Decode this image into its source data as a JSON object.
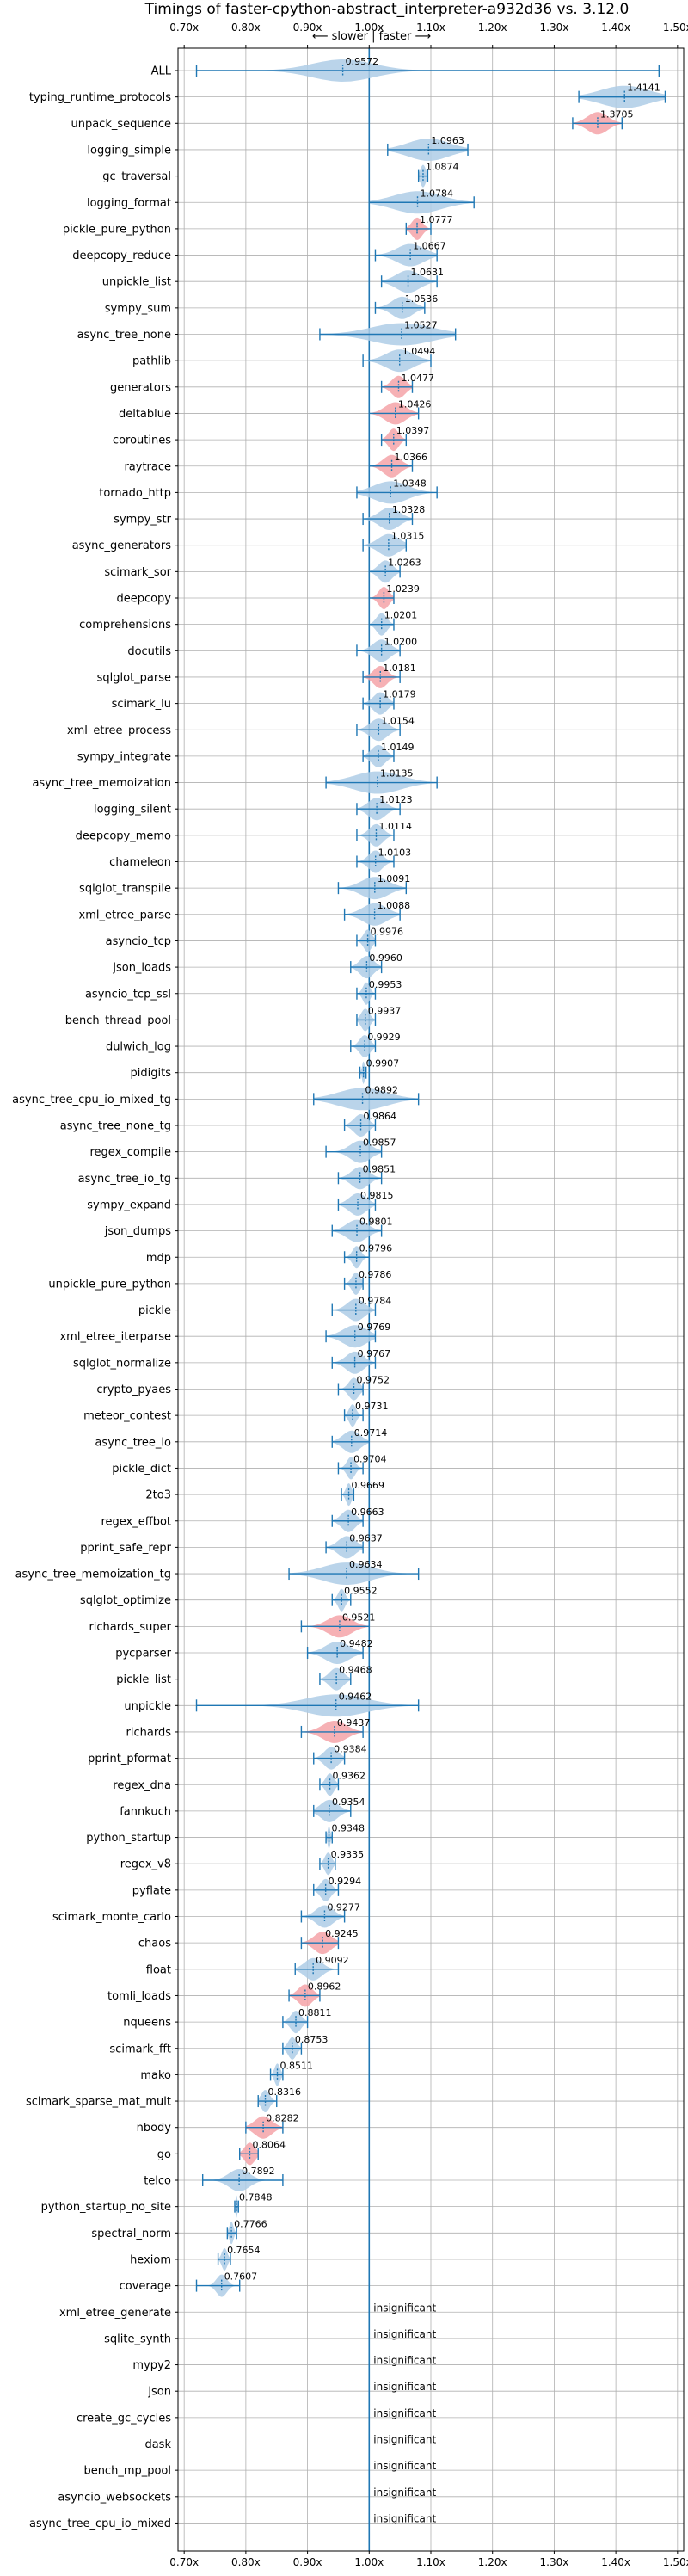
{
  "chart_data": {
    "type": "violin",
    "title": "Timings of faster-cpython-abstract_interpreter-a932d36 vs. 3.12.0",
    "direction_label": "⟵ slower | faster ⟶",
    "xlim": [
      0.69,
      1.51
    ],
    "x_ticks": [
      0.7,
      0.8,
      0.9,
      1.0,
      1.1,
      1.2,
      1.3,
      1.4,
      1.5
    ],
    "x_tick_labels": [
      "0.70x",
      "0.80x",
      "0.90x",
      "1.00x",
      "1.10x",
      "1.20x",
      "1.30x",
      "1.40x",
      "1.50x"
    ],
    "reference_line": 1.0,
    "grid": true,
    "highlight_color": "#f4a3a8",
    "violin_color": "#aecde6",
    "line_color": "#1f77b4",
    "insignificant_label": "insignificant",
    "benchmarks": [
      {
        "name": "ALL",
        "mean": 0.9572,
        "lo": 0.72,
        "hi": 1.47,
        "spread": 0.09,
        "highlight": false
      },
      {
        "name": "typing_runtime_protocols",
        "mean": 1.4141,
        "lo": 1.34,
        "hi": 1.48,
        "spread": 0.07,
        "highlight": false
      },
      {
        "name": "unpack_sequence",
        "mean": 1.3705,
        "lo": 1.33,
        "hi": 1.41,
        "spread": 0.03,
        "highlight": true
      },
      {
        "name": "logging_simple",
        "mean": 1.0963,
        "lo": 1.03,
        "hi": 1.16,
        "spread": 0.06,
        "highlight": false
      },
      {
        "name": "gc_traversal",
        "mean": 1.0874,
        "lo": 1.08,
        "hi": 1.095,
        "spread": 0.008,
        "highlight": false
      },
      {
        "name": "logging_format",
        "mean": 1.0784,
        "lo": 1.0,
        "hi": 1.17,
        "spread": 0.07,
        "highlight": false
      },
      {
        "name": "pickle_pure_python",
        "mean": 1.0777,
        "lo": 1.06,
        "hi": 1.1,
        "spread": 0.015,
        "highlight": true
      },
      {
        "name": "deepcopy_reduce",
        "mean": 1.0667,
        "lo": 1.01,
        "hi": 1.11,
        "spread": 0.04,
        "highlight": false
      },
      {
        "name": "unpickle_list",
        "mean": 1.0631,
        "lo": 1.02,
        "hi": 1.11,
        "spread": 0.035,
        "highlight": false
      },
      {
        "name": "sympy_sum",
        "mean": 1.0536,
        "lo": 1.01,
        "hi": 1.09,
        "spread": 0.03,
        "highlight": false
      },
      {
        "name": "async_tree_none",
        "mean": 1.0527,
        "lo": 0.92,
        "hi": 1.14,
        "spread": 0.09,
        "highlight": false
      },
      {
        "name": "pathlib",
        "mean": 1.0494,
        "lo": 0.99,
        "hi": 1.1,
        "spread": 0.04,
        "highlight": false
      },
      {
        "name": "generators",
        "mean": 1.0477,
        "lo": 1.02,
        "hi": 1.07,
        "spread": 0.02,
        "highlight": true
      },
      {
        "name": "deltablue",
        "mean": 1.0426,
        "lo": 1.0,
        "hi": 1.08,
        "spread": 0.03,
        "highlight": true
      },
      {
        "name": "coroutines",
        "mean": 1.0397,
        "lo": 1.02,
        "hi": 1.06,
        "spread": 0.015,
        "highlight": true
      },
      {
        "name": "raytrace",
        "mean": 1.0366,
        "lo": 1.0,
        "hi": 1.07,
        "spread": 0.025,
        "highlight": true
      },
      {
        "name": "tornado_http",
        "mean": 1.0348,
        "lo": 0.98,
        "hi": 1.11,
        "spread": 0.05,
        "highlight": false
      },
      {
        "name": "sympy_str",
        "mean": 1.0328,
        "lo": 0.99,
        "hi": 1.07,
        "spread": 0.03,
        "highlight": false
      },
      {
        "name": "async_generators",
        "mean": 1.0315,
        "lo": 0.99,
        "hi": 1.06,
        "spread": 0.03,
        "highlight": false
      },
      {
        "name": "scimark_sor",
        "mean": 1.0263,
        "lo": 1.0,
        "hi": 1.05,
        "spread": 0.02,
        "highlight": false
      },
      {
        "name": "deepcopy",
        "mean": 1.0239,
        "lo": 1.0,
        "hi": 1.04,
        "spread": 0.015,
        "highlight": true
      },
      {
        "name": "comprehensions",
        "mean": 1.0201,
        "lo": 1.0,
        "hi": 1.04,
        "spread": 0.015,
        "highlight": false
      },
      {
        "name": "docutils",
        "mean": 1.02,
        "lo": 0.98,
        "hi": 1.05,
        "spread": 0.025,
        "highlight": false
      },
      {
        "name": "sqlglot_parse",
        "mean": 1.0181,
        "lo": 0.99,
        "hi": 1.05,
        "spread": 0.02,
        "highlight": true
      },
      {
        "name": "scimark_lu",
        "mean": 1.0179,
        "lo": 0.99,
        "hi": 1.04,
        "spread": 0.02,
        "highlight": false
      },
      {
        "name": "xml_etree_process",
        "mean": 1.0154,
        "lo": 0.98,
        "hi": 1.05,
        "spread": 0.025,
        "highlight": false
      },
      {
        "name": "sympy_integrate",
        "mean": 1.0149,
        "lo": 0.99,
        "hi": 1.04,
        "spread": 0.02,
        "highlight": false
      },
      {
        "name": "async_tree_memoization",
        "mean": 1.0135,
        "lo": 0.93,
        "hi": 1.11,
        "spread": 0.07,
        "highlight": false
      },
      {
        "name": "logging_silent",
        "mean": 1.0123,
        "lo": 0.98,
        "hi": 1.05,
        "spread": 0.025,
        "highlight": false
      },
      {
        "name": "deepcopy_memo",
        "mean": 1.0114,
        "lo": 0.98,
        "hi": 1.04,
        "spread": 0.02,
        "highlight": false
      },
      {
        "name": "chameleon",
        "mean": 1.0103,
        "lo": 0.98,
        "hi": 1.04,
        "spread": 0.02,
        "highlight": false
      },
      {
        "name": "sqlglot_transpile",
        "mean": 1.0091,
        "lo": 0.95,
        "hi": 1.06,
        "spread": 0.04,
        "highlight": false
      },
      {
        "name": "xml_etree_parse",
        "mean": 1.0088,
        "lo": 0.96,
        "hi": 1.05,
        "spread": 0.035,
        "highlight": false
      },
      {
        "name": "asyncio_tcp",
        "mean": 0.9976,
        "lo": 0.98,
        "hi": 1.01,
        "spread": 0.012,
        "highlight": false
      },
      {
        "name": "json_loads",
        "mean": 0.996,
        "lo": 0.97,
        "hi": 1.02,
        "spread": 0.02,
        "highlight": false
      },
      {
        "name": "asyncio_tcp_ssl",
        "mean": 0.9953,
        "lo": 0.98,
        "hi": 1.01,
        "spread": 0.01,
        "highlight": false
      },
      {
        "name": "bench_thread_pool",
        "mean": 0.9937,
        "lo": 0.98,
        "hi": 1.01,
        "spread": 0.012,
        "highlight": false
      },
      {
        "name": "dulwich_log",
        "mean": 0.9929,
        "lo": 0.97,
        "hi": 1.01,
        "spread": 0.015,
        "highlight": false
      },
      {
        "name": "pidigits",
        "mean": 0.9907,
        "lo": 0.985,
        "hi": 0.995,
        "spread": 0.004,
        "highlight": false
      },
      {
        "name": "async_tree_cpu_io_mixed_tg",
        "mean": 0.9892,
        "lo": 0.91,
        "hi": 1.08,
        "spread": 0.07,
        "highlight": false
      },
      {
        "name": "async_tree_none_tg",
        "mean": 0.9864,
        "lo": 0.96,
        "hi": 1.01,
        "spread": 0.02,
        "highlight": false
      },
      {
        "name": "regex_compile",
        "mean": 0.9857,
        "lo": 0.93,
        "hi": 1.02,
        "spread": 0.03,
        "highlight": false
      },
      {
        "name": "async_tree_io_tg",
        "mean": 0.9851,
        "lo": 0.95,
        "hi": 1.02,
        "spread": 0.025,
        "highlight": false
      },
      {
        "name": "sympy_expand",
        "mean": 0.9815,
        "lo": 0.95,
        "hi": 1.01,
        "spread": 0.025,
        "highlight": false
      },
      {
        "name": "json_dumps",
        "mean": 0.9801,
        "lo": 0.94,
        "hi": 1.02,
        "spread": 0.03,
        "highlight": false
      },
      {
        "name": "mdp",
        "mean": 0.9796,
        "lo": 0.96,
        "hi": 1.0,
        "spread": 0.012,
        "highlight": false
      },
      {
        "name": "unpickle_pure_python",
        "mean": 0.9786,
        "lo": 0.96,
        "hi": 0.99,
        "spread": 0.012,
        "highlight": false
      },
      {
        "name": "pickle",
        "mean": 0.9784,
        "lo": 0.94,
        "hi": 1.01,
        "spread": 0.025,
        "highlight": false
      },
      {
        "name": "xml_etree_iterparse",
        "mean": 0.9769,
        "lo": 0.93,
        "hi": 1.01,
        "spread": 0.035,
        "highlight": false
      },
      {
        "name": "sqlglot_normalize",
        "mean": 0.9767,
        "lo": 0.94,
        "hi": 1.01,
        "spread": 0.025,
        "highlight": false
      },
      {
        "name": "crypto_pyaes",
        "mean": 0.9752,
        "lo": 0.95,
        "hi": 0.99,
        "spread": 0.015,
        "highlight": false
      },
      {
        "name": "meteor_contest",
        "mean": 0.9731,
        "lo": 0.96,
        "hi": 0.99,
        "spread": 0.01,
        "highlight": false
      },
      {
        "name": "async_tree_io",
        "mean": 0.9714,
        "lo": 0.94,
        "hi": 1.0,
        "spread": 0.025,
        "highlight": false
      },
      {
        "name": "pickle_dict",
        "mean": 0.9704,
        "lo": 0.95,
        "hi": 0.99,
        "spread": 0.012,
        "highlight": false
      },
      {
        "name": "2to3",
        "mean": 0.9669,
        "lo": 0.955,
        "hi": 0.975,
        "spread": 0.008,
        "highlight": false
      },
      {
        "name": "regex_effbot",
        "mean": 0.9663,
        "lo": 0.94,
        "hi": 0.99,
        "spread": 0.02,
        "highlight": false
      },
      {
        "name": "pprint_safe_repr",
        "mean": 0.9637,
        "lo": 0.93,
        "hi": 0.99,
        "spread": 0.025,
        "highlight": false
      },
      {
        "name": "async_tree_memoization_tg",
        "mean": 0.9634,
        "lo": 0.87,
        "hi": 1.08,
        "spread": 0.07,
        "highlight": false
      },
      {
        "name": "sqlglot_optimize",
        "mean": 0.9552,
        "lo": 0.94,
        "hi": 0.97,
        "spread": 0.01,
        "highlight": false
      },
      {
        "name": "richards_super",
        "mean": 0.9521,
        "lo": 0.89,
        "hi": 1.0,
        "spread": 0.035,
        "highlight": true
      },
      {
        "name": "pycparser",
        "mean": 0.9482,
        "lo": 0.9,
        "hi": 0.99,
        "spread": 0.035,
        "highlight": false
      },
      {
        "name": "pickle_list",
        "mean": 0.9468,
        "lo": 0.92,
        "hi": 0.97,
        "spread": 0.02,
        "highlight": false
      },
      {
        "name": "unpickle",
        "mean": 0.9462,
        "lo": 0.72,
        "hi": 1.08,
        "spread": 0.09,
        "highlight": false
      },
      {
        "name": "richards",
        "mean": 0.9437,
        "lo": 0.89,
        "hi": 0.99,
        "spread": 0.035,
        "highlight": true
      },
      {
        "name": "pprint_pformat",
        "mean": 0.9384,
        "lo": 0.91,
        "hi": 0.96,
        "spread": 0.02,
        "highlight": false
      },
      {
        "name": "regex_dna",
        "mean": 0.9362,
        "lo": 0.92,
        "hi": 0.95,
        "spread": 0.012,
        "highlight": false
      },
      {
        "name": "fannkuch",
        "mean": 0.9354,
        "lo": 0.91,
        "hi": 0.97,
        "spread": 0.025,
        "highlight": false
      },
      {
        "name": "python_startup",
        "mean": 0.9348,
        "lo": 0.93,
        "hi": 0.94,
        "spread": 0.004,
        "highlight": false
      },
      {
        "name": "regex_v8",
        "mean": 0.9335,
        "lo": 0.92,
        "hi": 0.945,
        "spread": 0.01,
        "highlight": false
      },
      {
        "name": "pyflate",
        "mean": 0.9294,
        "lo": 0.91,
        "hi": 0.95,
        "spread": 0.015,
        "highlight": false
      },
      {
        "name": "scimark_monte_carlo",
        "mean": 0.9277,
        "lo": 0.89,
        "hi": 0.96,
        "spread": 0.025,
        "highlight": false
      },
      {
        "name": "chaos",
        "mean": 0.9245,
        "lo": 0.89,
        "hi": 0.95,
        "spread": 0.025,
        "highlight": true
      },
      {
        "name": "float",
        "mean": 0.9092,
        "lo": 0.88,
        "hi": 0.95,
        "spread": 0.025,
        "highlight": false
      },
      {
        "name": "tomli_loads",
        "mean": 0.8962,
        "lo": 0.87,
        "hi": 0.92,
        "spread": 0.02,
        "highlight": true
      },
      {
        "name": "nqueens",
        "mean": 0.8811,
        "lo": 0.86,
        "hi": 0.9,
        "spread": 0.015,
        "highlight": false
      },
      {
        "name": "scimark_fft",
        "mean": 0.8753,
        "lo": 0.86,
        "hi": 0.89,
        "spread": 0.012,
        "highlight": false
      },
      {
        "name": "mako",
        "mean": 0.8511,
        "lo": 0.84,
        "hi": 0.86,
        "spread": 0.008,
        "highlight": false
      },
      {
        "name": "scimark_sparse_mat_mult",
        "mean": 0.8316,
        "lo": 0.82,
        "hi": 0.85,
        "spread": 0.012,
        "highlight": false
      },
      {
        "name": "nbody",
        "mean": 0.8282,
        "lo": 0.8,
        "hi": 0.86,
        "spread": 0.025,
        "highlight": true
      },
      {
        "name": "go",
        "mean": 0.8064,
        "lo": 0.79,
        "hi": 0.82,
        "spread": 0.015,
        "highlight": true
      },
      {
        "name": "telco",
        "mean": 0.7892,
        "lo": 0.73,
        "hi": 0.86,
        "spread": 0.03,
        "highlight": false
      },
      {
        "name": "python_startup_no_site",
        "mean": 0.7848,
        "lo": 0.782,
        "hi": 0.788,
        "spread": 0.003,
        "highlight": false
      },
      {
        "name": "spectral_norm",
        "mean": 0.7766,
        "lo": 0.77,
        "hi": 0.785,
        "spread": 0.006,
        "highlight": false
      },
      {
        "name": "hexiom",
        "mean": 0.7654,
        "lo": 0.755,
        "hi": 0.775,
        "spread": 0.008,
        "highlight": false
      },
      {
        "name": "coverage",
        "mean": 0.7607,
        "lo": 0.72,
        "hi": 0.79,
        "spread": 0.015,
        "highlight": false
      },
      {
        "name": "xml_etree_generate",
        "insignificant": true
      },
      {
        "name": "sqlite_synth",
        "insignificant": true
      },
      {
        "name": "mypy2",
        "insignificant": true
      },
      {
        "name": "json",
        "insignificant": true
      },
      {
        "name": "create_gc_cycles",
        "insignificant": true
      },
      {
        "name": "dask",
        "insignificant": true
      },
      {
        "name": "bench_mp_pool",
        "insignificant": true
      },
      {
        "name": "asyncio_websockets",
        "insignificant": true
      },
      {
        "name": "async_tree_cpu_io_mixed",
        "insignificant": true
      }
    ]
  }
}
